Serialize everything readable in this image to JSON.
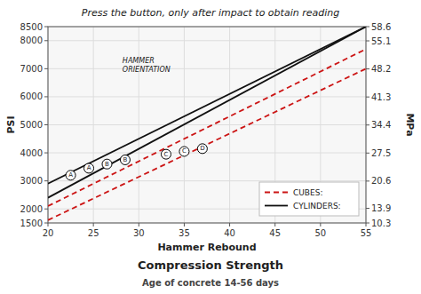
{
  "chart_data": {
    "type": "line",
    "title": "Press the button, only after impact to obtain reading",
    "xlabel": "Hammer Rebound",
    "ylabel": "PSI",
    "y2label": "MPa",
    "caption": "Compression Strength",
    "footnote": "Age of concrete 14-56 days",
    "xlim": [
      20,
      55
    ],
    "xticks": [
      20,
      25,
      30,
      35,
      40,
      45,
      50,
      55
    ],
    "ylim": [
      1500,
      8500
    ],
    "yticks": [
      1500,
      2000,
      3000,
      4000,
      5000,
      6000,
      7000,
      8000,
      8500
    ],
    "y2lim": [
      10.3,
      58.6
    ],
    "y2ticks": [
      10.3,
      13.9,
      20.6,
      27.5,
      34.4,
      41.3,
      48.2,
      55.1,
      58.6
    ],
    "grid": true,
    "legend": "lower right",
    "series": [
      {
        "name": "CUBES:",
        "type": "line",
        "color": "#cc1515",
        "line_style": "dashed",
        "x": [
          20,
          55,
          null,
          20,
          55
        ],
        "values": [
          1600,
          7000,
          null,
          2100,
          7700
        ]
      },
      {
        "name": "CYLINDERS:",
        "type": "line",
        "color": "#111111",
        "line_style": "solid",
        "x": [
          20,
          55,
          null,
          20,
          55
        ],
        "values": [
          2400,
          8500,
          null,
          2900,
          8500
        ]
      },
      {
        "type": "scatter",
        "color": "#000000",
        "marker": "circle",
        "x": [
          22.5,
          24.5,
          26.5,
          28.5,
          33.0,
          35.0,
          37.0
        ],
        "values": [
          3200,
          3450,
          3600,
          3750,
          3950,
          4050,
          4150
        ]
      }
    ],
    "annotations": [
      {
        "text": "HAMMER\nORIENTATION",
        "x": 28.2,
        "y": 7200
      },
      {
        "text": "A",
        "x": 22.5,
        "y": 3200
      },
      {
        "text": "A",
        "x": 24.5,
        "y": 3450
      },
      {
        "text": "B",
        "x": 26.5,
        "y": 3600
      },
      {
        "text": "B",
        "x": 28.5,
        "y": 3750
      },
      {
        "text": "C",
        "x": 33.0,
        "y": 3950
      },
      {
        "text": "C",
        "x": 35.0,
        "y": 4050
      },
      {
        "text": "D",
        "x": 37.0,
        "y": 4150
      }
    ]
  }
}
